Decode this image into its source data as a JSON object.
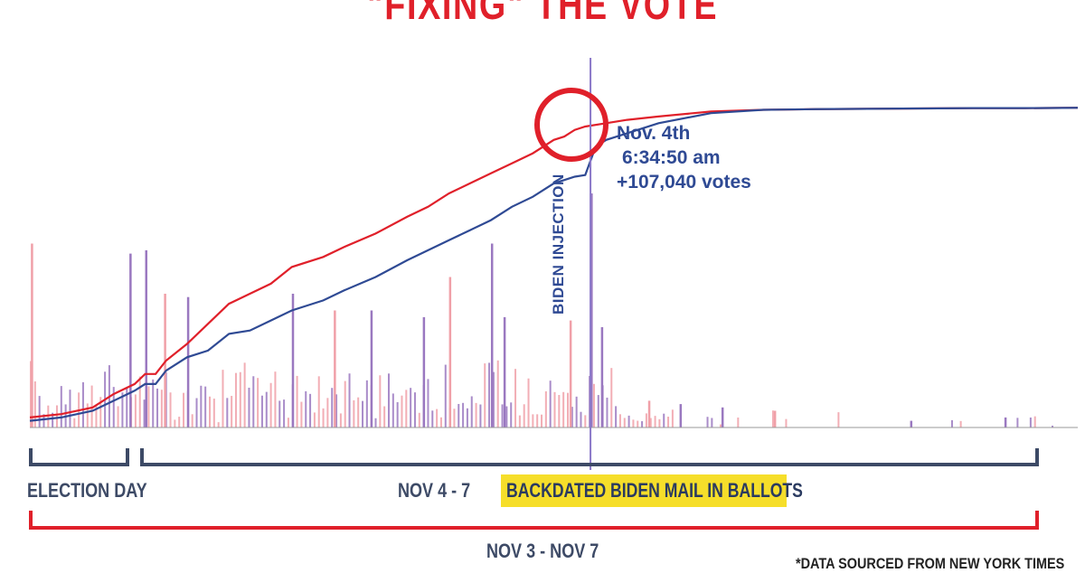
{
  "title": "\"FIXING\" THE VOTE",
  "annotation": {
    "date": "Nov. 4th",
    "time": "6:34:50 am",
    "votes": "+107,040 votes"
  },
  "injection_label": "BIDEN INJECTION",
  "labels": {
    "election_day": "ELECTION DAY",
    "nov4_7": "NOV 4 - 7",
    "backdated": "BACKDATED BIDEN MAIL IN BALLOTS",
    "nov3_7": "NOV 3 - NOV 7",
    "source": "*DATA SOURCED FROM NEW YORK TIMES"
  },
  "colors": {
    "red": "#e0202a",
    "blue": "#2f4a94",
    "bar_red": "#f0a0a8",
    "bar_purple": "#9a78c0",
    "bracket_blue": "#3d4a66",
    "highlight": "#f6de2a"
  },
  "chart_data": {
    "type": "line",
    "title": "\"FIXING\" THE VOTE",
    "xlabel": "",
    "ylabel": "",
    "grid": false,
    "legend": "none",
    "x_domain": [
      0,
      100
    ],
    "y_domain": [
      0,
      100
    ],
    "series": [
      {
        "color": "red",
        "x": [
          0,
          3,
          6,
          8,
          10,
          11,
          12,
          13,
          15,
          17,
          19,
          21,
          23,
          25,
          28,
          30,
          33,
          36,
          38,
          40,
          42,
          44,
          46,
          48,
          50,
          51,
          52,
          53,
          55,
          57,
          60,
          65,
          70,
          75,
          80,
          85,
          90,
          95,
          100
        ],
        "y": [
          3,
          4,
          6,
          10,
          13,
          16,
          16,
          20,
          25,
          31,
          37,
          40,
          43,
          48,
          51,
          54,
          58,
          63,
          66,
          70,
          73,
          76,
          79,
          82,
          86,
          87,
          89,
          90,
          91,
          92,
          93,
          94.5,
          95,
          95.2,
          95.3,
          95.4,
          95.5,
          95.5,
          95.6
        ]
      },
      {
        "color": "blue",
        "x": [
          0,
          3,
          6,
          8,
          10,
          11,
          12,
          13,
          15,
          17,
          19,
          21,
          23,
          25,
          28,
          30,
          33,
          36,
          38,
          40,
          42,
          44,
          46,
          48,
          50,
          51,
          52,
          53,
          54,
          55,
          57,
          60,
          65,
          70,
          75,
          80,
          85,
          90,
          95,
          100
        ],
        "y": [
          2,
          3,
          5,
          8,
          11,
          13,
          13,
          17,
          21,
          23,
          28,
          29,
          32,
          35,
          38,
          41,
          45,
          50,
          53,
          56,
          59,
          62,
          66,
          69,
          73,
          74,
          75,
          75.5,
          84,
          86,
          88,
          91,
          94,
          95,
          95.2,
          95.3,
          95.4,
          95.5,
          95.5,
          95.6
        ]
      }
    ],
    "injection": {
      "x": 53.5,
      "label": "BIDEN INJECTION"
    },
    "bars": {
      "x_start": 0,
      "x_end": 100,
      "count": 240,
      "seed": 17,
      "spikes": [
        {
          "x": 0.1,
          "h": 55
        },
        {
          "x": 9.5,
          "h": 52
        },
        {
          "x": 11,
          "h": 53
        },
        {
          "x": 12.8,
          "h": 40
        },
        {
          "x": 15,
          "h": 39
        },
        {
          "x": 25,
          "h": 40
        },
        {
          "x": 29,
          "h": 35
        },
        {
          "x": 32.5,
          "h": 35
        },
        {
          "x": 37.5,
          "h": 33
        },
        {
          "x": 40,
          "h": 45
        },
        {
          "x": 44,
          "h": 55
        },
        {
          "x": 45.2,
          "h": 33
        },
        {
          "x": 51.5,
          "h": 32
        },
        {
          "x": 53.5,
          "h": 70
        },
        {
          "x": 54.5,
          "h": 30
        },
        {
          "x": 59,
          "h": 8
        },
        {
          "x": 62,
          "h": 7
        },
        {
          "x": 66,
          "h": 6
        },
        {
          "x": 71,
          "h": 5
        },
        {
          "x": 84,
          "h": 2
        },
        {
          "x": 93,
          "h": 3
        }
      ]
    }
  }
}
